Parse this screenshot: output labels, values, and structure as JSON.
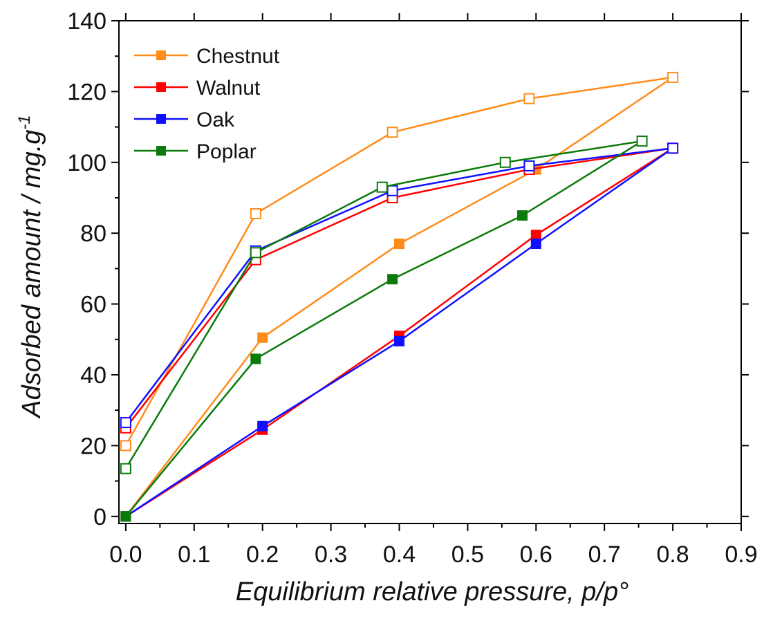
{
  "chart_data": {
    "type": "line",
    "xlabel": "Equilibrium relative pressure, p/p°",
    "ylabel_main": "Adsorbed amount / mg.g",
    "ylabel_sup": "-1",
    "xlim": [
      -0.01,
      0.9
    ],
    "ylim": [
      -2,
      140
    ],
    "x_ticks": [
      "0.0",
      "0.1",
      "0.2",
      "0.3",
      "0.4",
      "0.5",
      "0.6",
      "0.7",
      "0.8",
      "0.9"
    ],
    "y_ticks": [
      "0",
      "20",
      "40",
      "60",
      "80",
      "100",
      "120",
      "140"
    ],
    "legend_position": "top-left",
    "series": [
      {
        "name": "Chestnut",
        "color": "#FF8C1A",
        "adsorption": [
          [
            0.0,
            0
          ],
          [
            0.2,
            50.5
          ],
          [
            0.4,
            77
          ],
          [
            0.6,
            98
          ],
          [
            0.8,
            124
          ]
        ],
        "desorption": [
          [
            0.8,
            124
          ],
          [
            0.59,
            118
          ],
          [
            0.39,
            108.5
          ],
          [
            0.19,
            85.5
          ],
          [
            0.0,
            20
          ]
        ]
      },
      {
        "name": "Walnut",
        "color": "#FF0000",
        "adsorption": [
          [
            0.0,
            0
          ],
          [
            0.2,
            24.5
          ],
          [
            0.4,
            51
          ],
          [
            0.6,
            79.5
          ],
          [
            0.8,
            104
          ]
        ],
        "desorption": [
          [
            0.8,
            104
          ],
          [
            0.59,
            98
          ],
          [
            0.39,
            90
          ],
          [
            0.19,
            72.5
          ],
          [
            0.0,
            25
          ]
        ]
      },
      {
        "name": "Oak",
        "color": "#1010FF",
        "adsorption": [
          [
            0.0,
            0
          ],
          [
            0.2,
            25.5
          ],
          [
            0.4,
            49.5
          ],
          [
            0.6,
            77
          ],
          [
            0.8,
            104
          ]
        ],
        "desorption": [
          [
            0.8,
            104
          ],
          [
            0.59,
            99
          ],
          [
            0.39,
            92
          ],
          [
            0.19,
            75
          ],
          [
            0.0,
            26.5
          ]
        ]
      },
      {
        "name": "Poplar",
        "color": "#0A7A0A",
        "adsorption": [
          [
            0.0,
            0
          ],
          [
            0.19,
            44.5
          ],
          [
            0.39,
            67
          ],
          [
            0.58,
            85
          ],
          [
            0.755,
            106
          ]
        ],
        "desorption": [
          [
            0.755,
            106
          ],
          [
            0.555,
            100
          ],
          [
            0.375,
            93
          ],
          [
            0.19,
            74.5
          ],
          [
            0.0,
            13.5
          ]
        ]
      }
    ]
  }
}
